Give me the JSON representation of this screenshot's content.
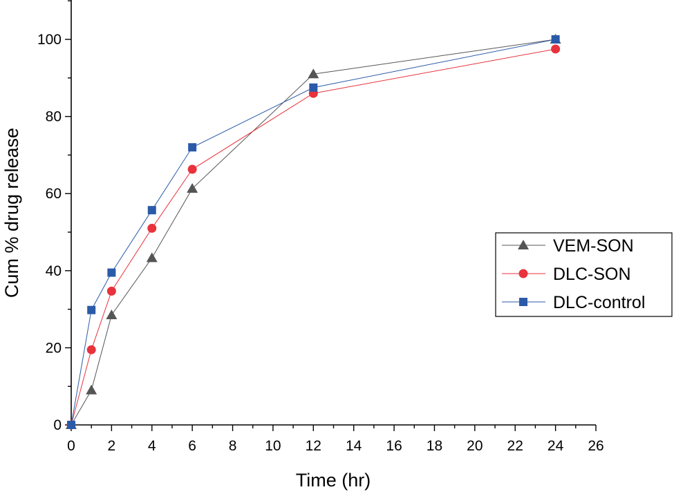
{
  "chart_data": {
    "type": "line",
    "xlabel": "Time (hr)",
    "ylabel": "Cum % drug release",
    "xlim": [
      0,
      26
    ],
    "ylim": [
      0,
      110
    ],
    "xticks": [
      0,
      2,
      4,
      6,
      8,
      10,
      12,
      14,
      16,
      18,
      20,
      22,
      24,
      26
    ],
    "yticks": [
      0,
      20,
      40,
      60,
      80,
      100
    ],
    "grid": false,
    "legend_position": "right",
    "x": [
      0,
      1,
      2,
      4,
      6,
      12,
      24
    ],
    "series": [
      {
        "name": "VEM-SON",
        "color": "#555555",
        "marker": "triangle",
        "values": [
          0,
          9,
          28.5,
          43.3,
          61.3,
          91,
          100
        ]
      },
      {
        "name": "DLC-SON",
        "color": "#e8323c",
        "marker": "circle",
        "values": [
          0,
          19.5,
          34.7,
          51,
          66.3,
          86,
          97.5
        ]
      },
      {
        "name": "DLC-control",
        "color": "#2a5aa8",
        "marker": "square",
        "values": [
          0,
          29.8,
          39.5,
          55.7,
          72,
          87.5,
          100
        ]
      }
    ]
  }
}
